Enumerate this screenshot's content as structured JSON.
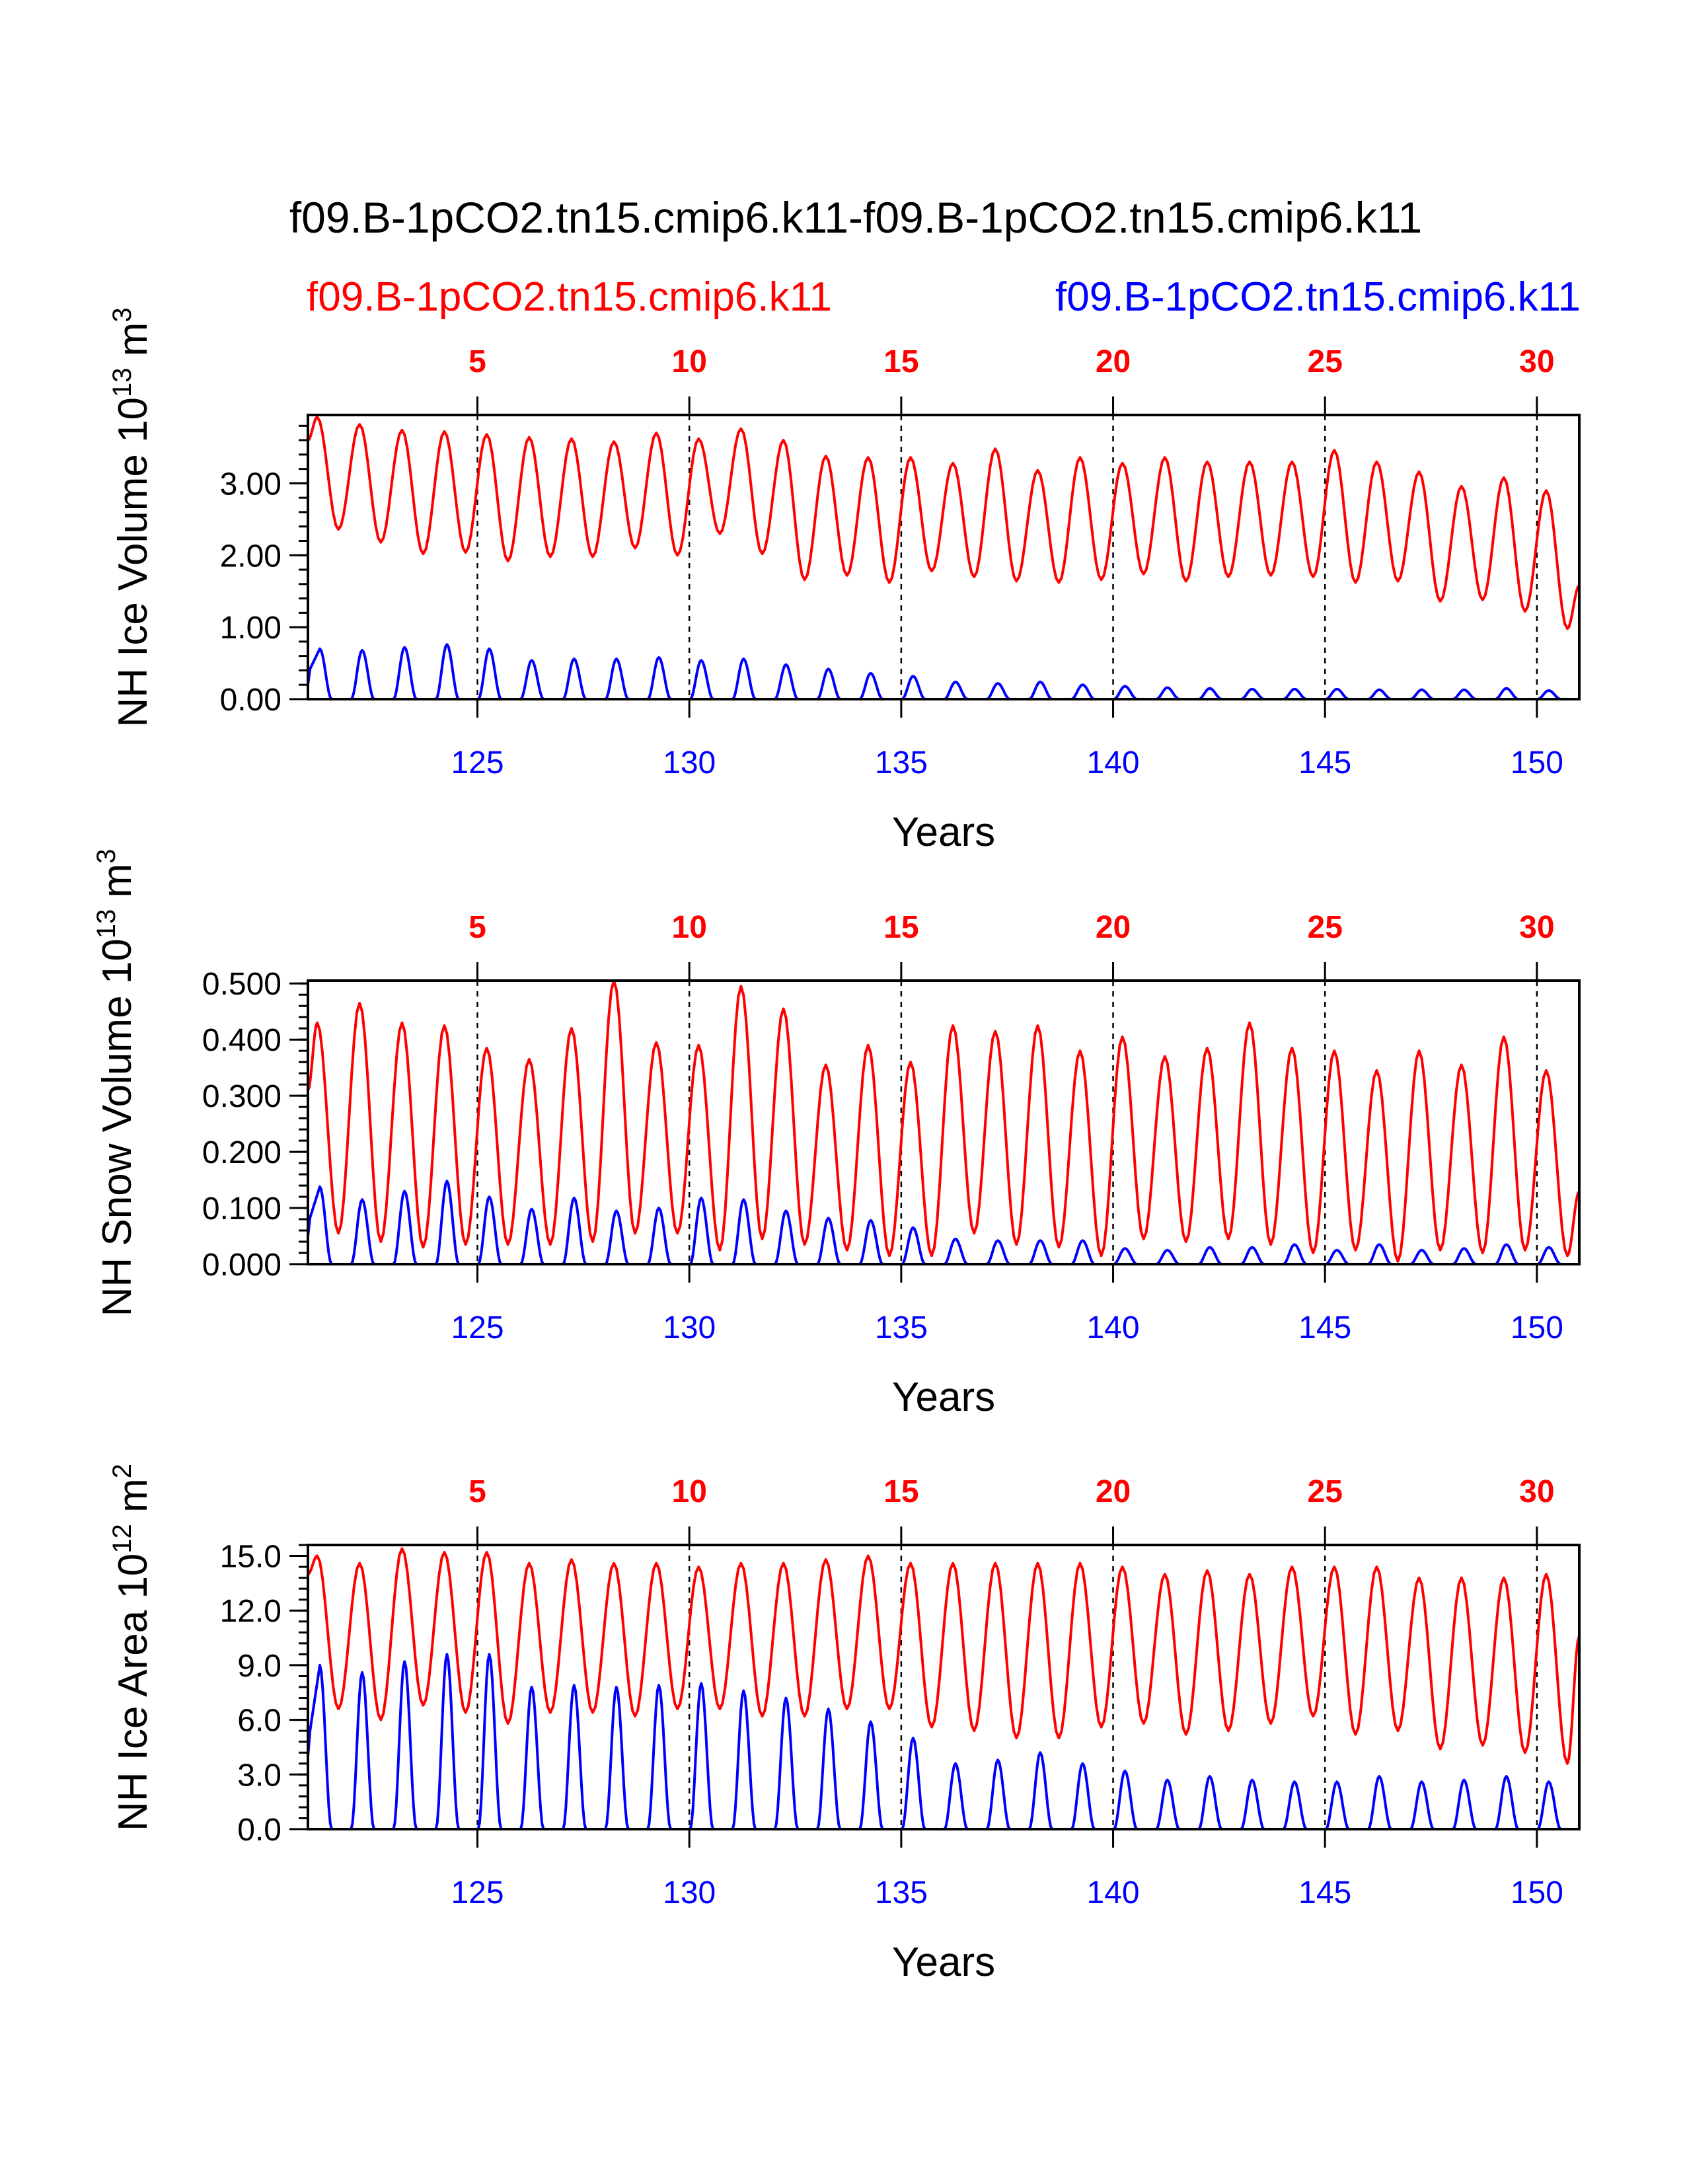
{
  "title": "f09.B-1pCO2.tn15.cmip6.k11-f09.B-1pCO2.tn15.cmip6.k11",
  "legend": {
    "left": {
      "label": "f09.B-1pCO2.tn15.cmip6.k11",
      "color": "#ff0000"
    },
    "right": {
      "label": "f09.B-1pCO2.tn15.cmip6.k11",
      "color": "#0000ff"
    }
  },
  "colors": {
    "red": "#ff0000",
    "blue": "#0000ff",
    "axis": "#000000"
  },
  "chart_data": [
    {
      "type": "line",
      "name": "ice-volume",
      "ylabel": "NH Ice Volume 10",
      "ylabel_exp": "13",
      "ylabel_unit": " m",
      "ylabel_unit_exp": "3",
      "xlabel": "Years",
      "ylim": [
        0,
        3.95
      ],
      "yticks": [
        0,
        1,
        2,
        3
      ],
      "ytick_labels": [
        "0.00",
        "1.00",
        "2.00",
        "3.00"
      ],
      "yminor": 0.2,
      "xlim": [
        121,
        151
      ],
      "top_ticks": [
        125,
        130,
        135,
        140,
        145,
        150
      ],
      "top_tick_labels": [
        "5",
        "10",
        "15",
        "20",
        "25",
        "30"
      ],
      "bottom_ticks": [
        125,
        130,
        135,
        140,
        145,
        150
      ],
      "bottom_tick_labels": [
        "125",
        "130",
        "135",
        "140",
        "145",
        "150"
      ],
      "series": [
        {
          "name": "f09.B-1pCO2.tn15.cmip6.k11 (red)",
          "color": "#ff0000",
          "start": 121.0,
          "step": 0.0833333,
          "max": [
            3.92,
            3.82,
            3.74,
            3.72,
            3.68,
            3.64,
            3.62,
            3.58,
            3.7,
            3.62,
            3.76,
            3.6,
            3.38,
            3.36,
            3.36,
            3.28,
            3.48,
            3.18,
            3.36,
            3.28,
            3.36,
            3.3,
            3.3,
            3.3,
            3.46,
            3.3,
            3.16,
            2.96,
            3.08,
            2.9
          ],
          "min": [
            2.36,
            2.18,
            2.02,
            2.04,
            1.92,
            1.98,
            1.98,
            2.1,
            2.0,
            2.3,
            2.02,
            1.66,
            1.72,
            1.62,
            1.78,
            1.7,
            1.64,
            1.62,
            1.66,
            1.74,
            1.64,
            1.7,
            1.72,
            1.7,
            1.62,
            1.64,
            1.36,
            1.38,
            1.22,
            0.98
          ],
          "start_value": 3.6,
          "end_value": 1.58
        },
        {
          "name": "f09.B-1pCO2.tn15.cmip6.k11 (blue)",
          "color": "#0000ff",
          "start": 121.0,
          "step": 0.0833333,
          "max": [
            0.7,
            0.68,
            0.72,
            0.76,
            0.7,
            0.54,
            0.56,
            0.56,
            0.58,
            0.54,
            0.56,
            0.48,
            0.42,
            0.36,
            0.32,
            0.24,
            0.22,
            0.24,
            0.2,
            0.18,
            0.16,
            0.15,
            0.14,
            0.14,
            0.14,
            0.13,
            0.13,
            0.13,
            0.15,
            0.12
          ],
          "min": [
            0,
            0,
            0,
            0,
            0,
            0,
            0,
            0,
            0,
            0,
            0,
            0,
            0,
            0,
            0,
            0,
            0,
            0,
            0,
            0,
            0,
            0,
            0,
            0,
            0,
            0,
            0,
            0,
            0,
            0
          ],
          "start_value": 0.2,
          "end_value": 0.0
        }
      ]
    },
    {
      "type": "line",
      "name": "snow-volume",
      "ylabel": "NH Snow Volume 10",
      "ylabel_exp": "13",
      "ylabel_unit": " m",
      "ylabel_unit_exp": "3",
      "xlabel": "Years",
      "ylim": [
        0,
        0.505
      ],
      "yticks": [
        0,
        0.1,
        0.2,
        0.3,
        0.4,
        0.5
      ],
      "ytick_labels": [
        "0.000",
        "0.100",
        "0.200",
        "0.300",
        "0.400",
        "0.500"
      ],
      "yminor": 0.02,
      "xlim": [
        121,
        151
      ],
      "top_ticks": [
        125,
        130,
        135,
        140,
        145,
        150
      ],
      "top_tick_labels": [
        "5",
        "10",
        "15",
        "20",
        "25",
        "30"
      ],
      "bottom_ticks": [
        125,
        130,
        135,
        140,
        145,
        150
      ],
      "bottom_tick_labels": [
        "125",
        "130",
        "135",
        "140",
        "145",
        "150"
      ],
      "series": [
        {
          "name": "f09.B-1pCO2.tn15.cmip6.k11 (red)",
          "color": "#ff0000",
          "start": 121.0,
          "step": 0.0833333,
          "max": [
            0.43,
            0.465,
            0.43,
            0.425,
            0.385,
            0.365,
            0.42,
            0.505,
            0.395,
            0.39,
            0.495,
            0.455,
            0.355,
            0.39,
            0.36,
            0.425,
            0.415,
            0.425,
            0.38,
            0.405,
            0.37,
            0.385,
            0.43,
            0.385,
            0.38,
            0.345,
            0.38,
            0.355,
            0.405,
            0.345
          ],
          "min": [
            0.055,
            0.04,
            0.03,
            0.035,
            0.035,
            0.035,
            0.04,
            0.055,
            0.055,
            0.025,
            0.045,
            0.035,
            0.025,
            0.015,
            0.015,
            0.055,
            0.035,
            0.03,
            0.015,
            0.045,
            0.04,
            0.045,
            0.035,
            0.02,
            0.025,
            0.005,
            0.025,
            0.02,
            0.025,
            0.015
          ],
          "start_value": 0.31,
          "end_value": 0.13
        },
        {
          "name": "f09.B-1pCO2.tn15.cmip6.k11 (blue)",
          "color": "#0000ff",
          "start": 121.0,
          "step": 0.0833333,
          "max": [
            0.138,
            0.115,
            0.13,
            0.148,
            0.12,
            0.098,
            0.118,
            0.095,
            0.1,
            0.118,
            0.115,
            0.095,
            0.082,
            0.078,
            0.065,
            0.045,
            0.042,
            0.042,
            0.042,
            0.028,
            0.025,
            0.03,
            0.03,
            0.035,
            0.025,
            0.035,
            0.025,
            0.028,
            0.035,
            0.03
          ],
          "min": [
            0,
            0,
            0,
            0,
            0,
            0,
            0,
            0,
            0,
            0,
            0,
            0,
            0,
            0,
            0,
            0,
            0,
            0,
            0,
            0,
            0,
            0,
            0,
            0,
            0,
            0,
            0,
            0,
            0,
            0
          ],
          "start_value": 0.05,
          "end_value": 0.0
        }
      ]
    },
    {
      "type": "line",
      "name": "ice-area",
      "ylabel": "NH Ice Area 10",
      "ylabel_exp": "12",
      "ylabel_unit": " m",
      "ylabel_unit_exp": "2",
      "xlabel": "Years",
      "ylim": [
        0,
        15.6
      ],
      "yticks": [
        0,
        3,
        6,
        9,
        12,
        15
      ],
      "ytick_labels": [
        "0.0",
        "3.0",
        "6.0",
        "9.0",
        "12.0",
        "15.0"
      ],
      "yminor": 0.6,
      "xlim": [
        121,
        151
      ],
      "top_ticks": [
        125,
        130,
        135,
        140,
        145,
        150
      ],
      "top_tick_labels": [
        "5",
        "10",
        "15",
        "20",
        "25",
        "30"
      ],
      "bottom_ticks": [
        125,
        130,
        135,
        140,
        145,
        150
      ],
      "bottom_tick_labels": [
        "125",
        "130",
        "135",
        "140",
        "145",
        "150"
      ],
      "series": [
        {
          "name": "f09.B-1pCO2.tn15.cmip6.k11 (red)",
          "color": "#ff0000",
          "start": 121.0,
          "step": 0.0833333,
          "max": [
            15.0,
            14.6,
            15.4,
            15.2,
            15.2,
            14.6,
            14.8,
            14.6,
            14.6,
            14.4,
            14.6,
            14.6,
            14.8,
            15.0,
            14.6,
            14.6,
            14.6,
            14.6,
            14.6,
            14.4,
            14.0,
            14.2,
            14.0,
            14.4,
            14.4,
            14.4,
            13.8,
            13.8,
            13.8,
            14.0
          ],
          "min": [
            6.6,
            6.0,
            6.8,
            6.4,
            5.8,
            6.4,
            6.4,
            6.2,
            6.6,
            6.6,
            6.2,
            6.2,
            6.6,
            6.6,
            5.6,
            5.4,
            5.0,
            5.0,
            5.6,
            5.8,
            5.2,
            5.4,
            5.8,
            6.2,
            5.2,
            5.4,
            4.4,
            4.6,
            4.2,
            3.6
          ],
          "start_value": 14.0,
          "end_value": 10.6
        },
        {
          "name": "f09.B-1pCO2.tn15.cmip6.k11 (blue)",
          "color": "#0000ff",
          "start": 121.0,
          "step": 0.0833333,
          "max": [
            9.0,
            8.6,
            9.2,
            9.6,
            9.6,
            7.8,
            7.9,
            7.8,
            7.9,
            8.0,
            7.6,
            7.2,
            6.6,
            5.9,
            5.0,
            3.6,
            3.8,
            4.2,
            3.6,
            3.2,
            2.7,
            2.9,
            2.7,
            2.6,
            2.6,
            2.9,
            2.6,
            2.7,
            2.9,
            2.6
          ],
          "min": [
            0,
            0,
            0,
            0,
            0,
            0,
            0,
            0,
            0,
            0,
            0,
            0,
            0,
            0,
            0,
            0,
            0,
            0,
            0,
            0,
            0,
            0,
            0,
            0,
            0,
            0,
            0,
            0,
            0,
            0
          ],
          "start_value": 4.0,
          "end_value": 0.0
        }
      ]
    }
  ]
}
